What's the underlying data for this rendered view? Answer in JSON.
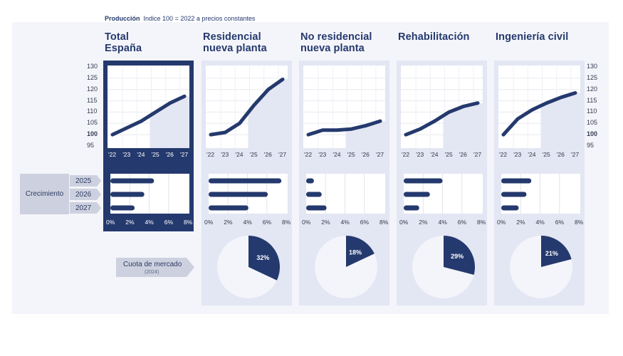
{
  "header": {
    "title": "Producción",
    "subtitle": "Índice 100 = 2022 a precios constantes"
  },
  "labels": {
    "growth": "Crecimiento",
    "growth_years": [
      "2025",
      "2026",
      "2027"
    ],
    "market_share": "Cuota de mercado",
    "market_share_year": "(2024)"
  },
  "colors": {
    "accent": "#24396d",
    "panel": "#e3e6f3",
    "forecast_shade": "#e3e6f3",
    "tag": "#cdd1df"
  },
  "chart_data": [
    {
      "type": "line",
      "title": "Total\nEspaña",
      "x": [
        "'22",
        "'23",
        "'24",
        "'25",
        "'26",
        "'27"
      ],
      "y": [
        100,
        103,
        106,
        110,
        114,
        117
      ],
      "ylim": [
        95,
        130
      ],
      "yticks": [
        95,
        100,
        105,
        110,
        115,
        120,
        125,
        130
      ],
      "forecast_from": "'25",
      "growth": {
        "type": "bar",
        "categories": [
          "2025",
          "2026",
          "2027"
        ],
        "values": [
          4.5,
          3.5,
          2.5
        ],
        "xticks": [
          "0%",
          "2%",
          "4%",
          "6%",
          "8%"
        ],
        "xlim": [
          0,
          8
        ]
      }
    },
    {
      "type": "line",
      "title": "Residencial\nnueva planta",
      "x": [
        "'22",
        "'23",
        "'24",
        "'25",
        "'26",
        "'27"
      ],
      "y": [
        100,
        101,
        105,
        113,
        120,
        124.5
      ],
      "ylim": [
        95,
        130
      ],
      "forecast_from": "'25",
      "growth": {
        "type": "bar",
        "categories": [
          "2025",
          "2026",
          "2027"
        ],
        "values": [
          7.5,
          6.1,
          4.1
        ],
        "xticks": [
          "0%",
          "2%",
          "4%",
          "6%",
          "8%"
        ],
        "xlim": [
          0,
          8
        ]
      },
      "market_share": {
        "type": "pie",
        "value": 32,
        "label": "32%"
      }
    },
    {
      "type": "line",
      "title": "No residencial\nnueva planta",
      "x": [
        "'22",
        "'23",
        "'24",
        "'25",
        "'26",
        "'27"
      ],
      "y": [
        100,
        102,
        102,
        102.5,
        104,
        106
      ],
      "ylim": [
        95,
        130
      ],
      "forecast_from": "'25",
      "growth": {
        "type": "bar",
        "categories": [
          "2025",
          "2026",
          "2027"
        ],
        "values": [
          0.8,
          1.6,
          2.1
        ],
        "xticks": [
          "0%",
          "2%",
          "4%",
          "6%",
          "8%"
        ],
        "xlim": [
          0,
          8
        ]
      },
      "market_share": {
        "type": "pie",
        "value": 18,
        "label": "18%"
      }
    },
    {
      "type": "line",
      "title": "Rehabilitación",
      "x": [
        "'22",
        "'23",
        "'24",
        "'25",
        "'26",
        "'27"
      ],
      "y": [
        100,
        102.5,
        106,
        110,
        112.5,
        114
      ],
      "ylim": [
        95,
        130
      ],
      "forecast_from": "'25",
      "growth": {
        "type": "bar",
        "categories": [
          "2025",
          "2026",
          "2027"
        ],
        "values": [
          4,
          2.7,
          1.6
        ],
        "xticks": [
          "0%",
          "2%",
          "4%",
          "6%",
          "8%"
        ],
        "xlim": [
          0,
          8
        ]
      },
      "market_share": {
        "type": "pie",
        "value": 29,
        "label": "29%"
      }
    },
    {
      "type": "line",
      "title": "Ingeniería civil",
      "x": [
        "'22",
        "'23",
        "'24",
        "'25",
        "'26",
        "'27"
      ],
      "y": [
        100,
        107,
        111,
        114,
        116.5,
        118.5
      ],
      "ylim": [
        95,
        130
      ],
      "yticks": [
        95,
        100,
        105,
        110,
        115,
        120,
        125,
        130
      ],
      "forecast_from": "'25",
      "growth": {
        "type": "bar",
        "categories": [
          "2025",
          "2026",
          "2027"
        ],
        "values": [
          3.1,
          2.6,
          1.8
        ],
        "xticks": [
          "0%",
          "2%",
          "4%",
          "6%",
          "8%"
        ],
        "xlim": [
          0,
          8
        ]
      },
      "market_share": {
        "type": "pie",
        "value": 21,
        "label": "21%"
      }
    }
  ]
}
